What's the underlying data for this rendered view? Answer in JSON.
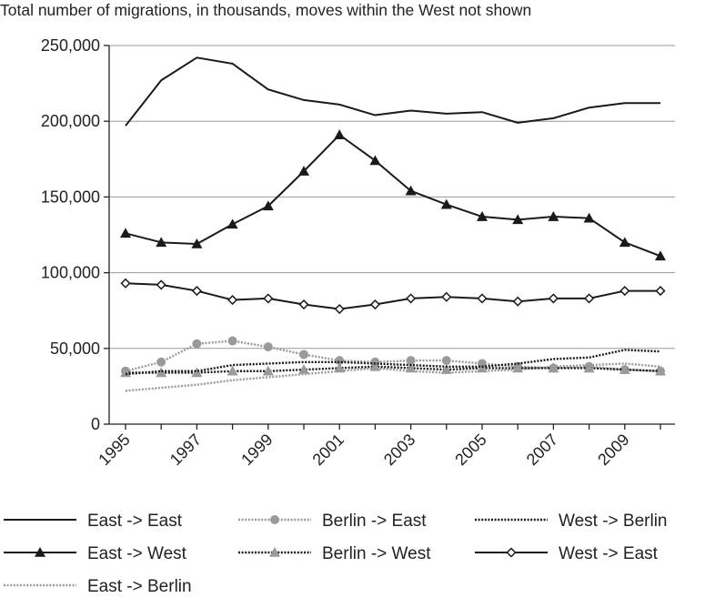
{
  "chart_data": {
    "type": "line",
    "title": "Total number of migrations, in thousands, moves within the West not shown",
    "xlabel": "",
    "ylabel": "",
    "x": [
      1995,
      1996,
      1997,
      1998,
      1999,
      2000,
      2001,
      2002,
      2003,
      2004,
      2005,
      2006,
      2007,
      2008,
      2009,
      2010
    ],
    "x_tick_labels": [
      "1995",
      "1997",
      "1999",
      "2001",
      "2003",
      "2005",
      "2007",
      "2009"
    ],
    "x_tick_values": [
      1995,
      1997,
      1999,
      2001,
      2003,
      2005,
      2007,
      2009
    ],
    "ylim": [
      0,
      250000
    ],
    "y_ticks": [
      0,
      50000,
      100000,
      150000,
      200000,
      250000
    ],
    "y_tick_labels": [
      "0",
      "50,000",
      "100,000",
      "150,000",
      "200,000",
      "250,000"
    ],
    "grid": "horizontal",
    "legend_placement": "bottom",
    "series": [
      {
        "name": "East -> East",
        "style": "solid-black",
        "marker": "none",
        "values": [
          197000,
          227000,
          242000,
          238000,
          221000,
          214000,
          211000,
          204000,
          207000,
          205000,
          206000,
          199000,
          202000,
          209000,
          212000,
          212000
        ]
      },
      {
        "name": "Berlin -> East",
        "style": "dotted-gray",
        "marker": "circle",
        "values": [
          35000,
          41000,
          53000,
          55000,
          51000,
          46000,
          42000,
          41000,
          42000,
          42000,
          40000,
          38000,
          37000,
          38000,
          36000,
          35000
        ]
      },
      {
        "name": "West -> Berlin",
        "style": "dotted-black",
        "marker": "none",
        "values": [
          33000,
          35000,
          35000,
          39000,
          40000,
          41000,
          41000,
          40000,
          39000,
          38000,
          38000,
          40000,
          43000,
          44000,
          49000,
          48000
        ]
      },
      {
        "name": "East -> West",
        "style": "solid-black",
        "marker": "triangle",
        "values": [
          126000,
          120000,
          119000,
          132000,
          144000,
          167000,
          191000,
          174000,
          154000,
          145000,
          137000,
          135000,
          137000,
          136000,
          120000,
          111000
        ]
      },
      {
        "name": "Berlin -> West",
        "style": "dotted-black",
        "marker": "triangle-gray",
        "values": [
          34000,
          34000,
          34000,
          35000,
          35000,
          36000,
          37000,
          38000,
          37000,
          36000,
          37000,
          37000,
          37000,
          37000,
          36000,
          35000
        ]
      },
      {
        "name": "West -> East",
        "style": "solid-black",
        "marker": "diamond",
        "values": [
          93000,
          92000,
          88000,
          82000,
          83000,
          79000,
          76000,
          79000,
          83000,
          84000,
          83000,
          81000,
          83000,
          83000,
          88000,
          88000
        ]
      },
      {
        "name": "East -> Berlin",
        "style": "dotted-gray",
        "marker": "none",
        "values": [
          22000,
          24000,
          26000,
          29000,
          31000,
          33000,
          35000,
          37000,
          35000,
          34000,
          35000,
          36000,
          38000,
          39000,
          40000,
          38000
        ]
      }
    ],
    "colors": {
      "axis": "#222222",
      "grid": "#999999",
      "black": "#1a1a1a",
      "gray": "#9a9a9a"
    }
  }
}
